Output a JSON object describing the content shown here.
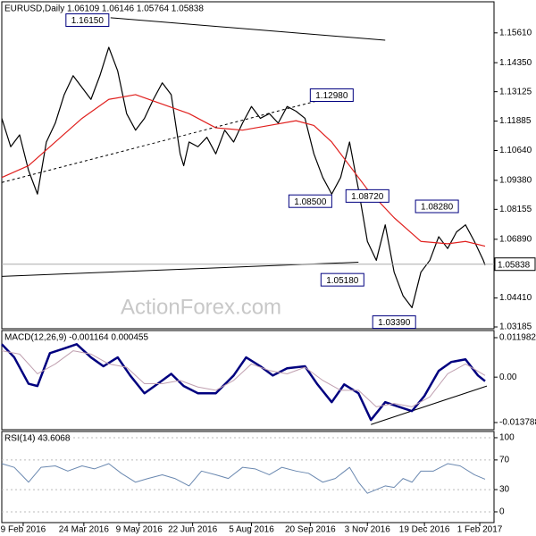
{
  "chart_data": [
    {
      "type": "line",
      "title": "EURUSD,Daily 1.06109 1.06146 1.05764 1.05838",
      "watermark": "ActionForex.com",
      "xlim": [
        0,
        276
      ],
      "ylim": [
        1.0311,
        1.16924
      ],
      "yticks": [
        {
          "value": 1.1561,
          "label": "1.15610"
        },
        {
          "value": 1.1435,
          "label": "1.14350"
        },
        {
          "value": 1.13125,
          "label": "1.13125"
        },
        {
          "value": 1.11885,
          "label": "1.11885"
        },
        {
          "value": 1.1064,
          "label": "1.10640"
        },
        {
          "value": 1.0938,
          "label": "1.09380"
        },
        {
          "value": 1.08155,
          "label": "1.08155"
        },
        {
          "value": 1.0689,
          "label": "1.06890"
        },
        {
          "value": 1.0441,
          "label": "1.04410"
        },
        {
          "value": 1.03185,
          "label": "1.03185"
        }
      ],
      "last_price": {
        "value": 1.05838,
        "label": "1.05838"
      },
      "series": [
        {
          "color": "#000000",
          "x": [
            0,
            5,
            10,
            15,
            20,
            25,
            30,
            35,
            40,
            45,
            50,
            55,
            60,
            65,
            70,
            75,
            80,
            85,
            90,
            95,
            100,
            102,
            105,
            110,
            115,
            120,
            125,
            130,
            135,
            140,
            145,
            150,
            155,
            160,
            165,
            170,
            175,
            180,
            185,
            190,
            195,
            200,
            205,
            210,
            215,
            220,
            225,
            230,
            235,
            240,
            245,
            250,
            255,
            260,
            265,
            270,
            271
          ],
          "values": [
            1.12,
            1.108,
            1.113,
            1.098,
            1.088,
            1.11,
            1.118,
            1.13,
            1.138,
            1.133,
            1.128,
            1.138,
            1.15,
            1.14,
            1.122,
            1.115,
            1.12,
            1.128,
            1.135,
            1.13,
            1.105,
            1.1,
            1.11,
            1.108,
            1.112,
            1.105,
            1.115,
            1.11,
            1.118,
            1.125,
            1.12,
            1.122,
            1.118,
            1.125,
            1.123,
            1.12,
            1.105,
            1.095,
            1.088,
            1.095,
            1.11,
            1.09,
            1.068,
            1.06,
            1.075,
            1.055,
            1.045,
            1.04,
            1.055,
            1.06,
            1.07,
            1.065,
            1.072,
            1.075,
            1.068,
            1.06,
            1.058
          ]
        },
        {
          "color": "#e0201e",
          "x": [
            0,
            15,
            30,
            45,
            60,
            75,
            90,
            105,
            120,
            135,
            150,
            165,
            175,
            185,
            195,
            205,
            220,
            235,
            250,
            260,
            271
          ],
          "values": [
            1.095,
            1.1,
            1.11,
            1.12,
            1.128,
            1.13,
            1.126,
            1.122,
            1.116,
            1.115,
            1.117,
            1.119,
            1.117,
            1.11,
            1.1,
            1.09,
            1.078,
            1.068,
            1.067,
            1.068,
            1.066
          ]
        }
      ],
      "trendlines": [
        {
          "x": [
            61,
            215
          ],
          "values": [
            1.1625,
            1.153
          ],
          "dashed": false
        },
        {
          "x": [
            0,
            195
          ],
          "values": [
            1.0929,
            1.1309
          ],
          "dashed": true
        },
        {
          "x": [
            0,
            200
          ],
          "values": [
            1.05325,
            1.0592
          ],
          "dashed": false
        }
      ],
      "annotations": [
        {
          "label": "1.16150",
          "x": 48,
          "y": 1.1615
        },
        {
          "label": "1.12980",
          "x": 185,
          "y": 1.1298
        },
        {
          "label": "1.08500",
          "x": 173,
          "y": 1.085
        },
        {
          "label": "1.08720",
          "x": 205,
          "y": 1.0872
        },
        {
          "label": "1.08280",
          "x": 244,
          "y": 1.0828
        },
        {
          "label": "1.05180",
          "x": 191,
          "y": 1.0518
        },
        {
          "label": "1.03390",
          "x": 220,
          "y": 1.0339
        }
      ]
    },
    {
      "type": "line",
      "title": "MACD(12,26,9) -0.001164 0.000455",
      "xlim": [
        0,
        276
      ],
      "ylim": [
        -0.01596,
        0.01415
      ],
      "yticks": [
        0.011982,
        {
          "value": 0,
          "label": "0.00"
        },
        -0.013788
      ],
      "series": [
        {
          "color": "#00007f",
          "width": 2.5,
          "x": [
            0,
            7,
            15,
            20,
            27,
            35,
            42,
            50,
            57,
            65,
            72,
            80,
            87,
            95,
            102,
            110,
            120,
            130,
            137,
            145,
            152,
            160,
            170,
            177,
            185,
            192,
            200,
            207,
            215,
            222,
            230,
            237,
            245,
            252,
            260,
            267,
            271
          ],
          "values": [
            0.01,
            0.006,
            -0.002,
            -0.0027,
            0.0073,
            0.0087,
            0.01,
            0.006,
            0.0033,
            0.006,
            0.0005,
            -0.0049,
            -0.0022,
            0.001,
            -0.0027,
            -0.0049,
            -0.0049,
            0.0005,
            0.006,
            0.0033,
            0.0005,
            0.0027,
            0.0033,
            -0.0022,
            -0.0076,
            -0.0022,
            -0.0049,
            -0.013,
            -0.0076,
            -0.0089,
            -0.0103,
            -0.0057,
            0.0019,
            0.0046,
            0.0054,
            0.0005,
            -0.0012
          ]
        },
        {
          "color": "#c0a0b0",
          "width": 1,
          "x": [
            0,
            10,
            20,
            30,
            40,
            50,
            60,
            70,
            80,
            90,
            100,
            110,
            120,
            130,
            140,
            150,
            160,
            170,
            180,
            190,
            200,
            210,
            220,
            230,
            240,
            250,
            260,
            271
          ],
          "values": [
            0.008,
            0.007,
            0.001,
            0.004,
            0.008,
            0.007,
            0.004,
            0.003,
            -0.002,
            -0.002,
            -0.001,
            -0.003,
            -0.004,
            -0.001,
            0.004,
            0.002,
            0.001,
            0.003,
            -0.001,
            -0.004,
            -0.004,
            -0.009,
            -0.008,
            -0.009,
            -0.006,
            0.001,
            0.004,
            0.0005
          ]
        }
      ],
      "trendlines": [
        {
          "x": [
            207,
            272
          ],
          "values": [
            -0.0144,
            -0.0027
          ],
          "dashed": false
        }
      ]
    },
    {
      "type": "line",
      "title": "RSI(14) 43.6068",
      "xlim": [
        0,
        276
      ],
      "ylim": [
        -14.5,
        108.4
      ],
      "yticks": [
        100,
        70,
        30,
        0
      ],
      "series": [
        {
          "color": "#6a88b0",
          "width": 1,
          "x": [
            0,
            7,
            15,
            22,
            30,
            37,
            45,
            52,
            60,
            67,
            75,
            82,
            90,
            97,
            105,
            112,
            120,
            127,
            135,
            142,
            150,
            157,
            165,
            172,
            180,
            187,
            195,
            200,
            205,
            210,
            215,
            220,
            225,
            230,
            235,
            242,
            250,
            257,
            265,
            271
          ],
          "values": [
            65,
            60,
            40,
            60,
            62,
            55,
            62,
            58,
            65,
            52,
            40,
            45,
            50,
            45,
            35,
            55,
            50,
            45,
            60,
            58,
            50,
            60,
            55,
            52,
            40,
            45,
            60,
            40,
            25,
            30,
            35,
            33,
            45,
            40,
            55,
            55,
            65,
            62,
            50,
            44
          ]
        }
      ],
      "xticks": [
        {
          "value": 12,
          "label": "9 Feb 2016"
        },
        {
          "value": 46,
          "label": "24 Mar 2016"
        },
        {
          "value": 77,
          "label": "9 May 2016"
        },
        {
          "value": 107,
          "label": "22 Jun 2016"
        },
        {
          "value": 140,
          "label": "5 Aug 2016"
        },
        {
          "value": 173,
          "label": "20 Sep 2016"
        },
        {
          "value": 205,
          "label": "3 Nov 2016"
        },
        {
          "value": 237,
          "label": "19 Dec 2016"
        },
        {
          "value": 268,
          "label": "1 Feb 2017"
        }
      ]
    }
  ]
}
